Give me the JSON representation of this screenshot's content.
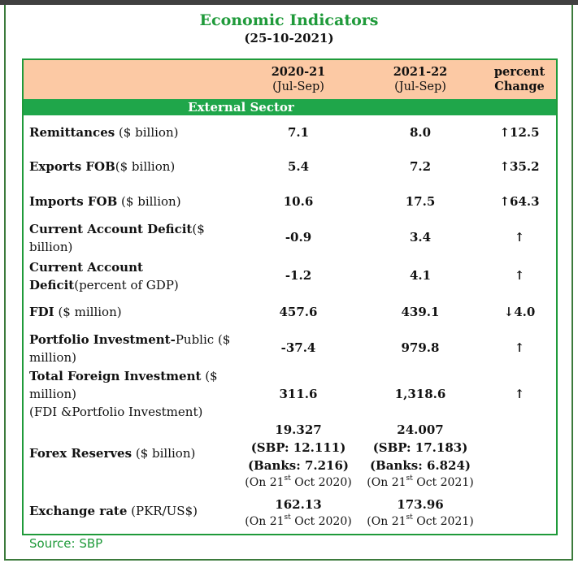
{
  "title": "Economic Indicators",
  "date": "(25-10-2021)",
  "columns": {
    "col1_year": "2020-21",
    "col1_period": "(Jul-Sep)",
    "col2_year": "2021-22",
    "col2_period": "(Jul-Sep)",
    "col3_line1": "percent",
    "col3_line2": "Change"
  },
  "section": "External Sector",
  "rows": {
    "remittances": {
      "label": "Remittances",
      "unit": " ($ billion)",
      "v1": "7.1",
      "v2": "8.0",
      "chg": "↑12.5"
    },
    "exports": {
      "label": "Exports FOB",
      "unit": "($ billion)",
      "v1": "5.4",
      "v2": "7.2",
      "chg": "↑35.2"
    },
    "imports": {
      "label": "Imports FOB",
      "unit": " ($ billion)",
      "v1": "10.6",
      "v2": "17.5",
      "chg": "↑64.3"
    },
    "cad": {
      "label": "Current Account Deficit",
      "unit": "($",
      "unit2": "billion)",
      "v1": "-0.9",
      "v2": "3.4",
      "chg": "↑"
    },
    "cad_gdp": {
      "label": "Current Account",
      "label2": "Deficit",
      "unit": "(percent of GDP)",
      "v1": "-1.2",
      "v2": "4.1",
      "chg": "↑"
    },
    "fdi": {
      "label": "FDI",
      "unit": " ($ million)",
      "v1": "457.6",
      "v2": "439.1",
      "chg": "↓4.0"
    },
    "portfolio": {
      "label": "Portfolio Investment-",
      "unit": "Public ($",
      "unit2": "million)",
      "v1": "-37.4",
      "v2": "979.8",
      "chg": "↑"
    },
    "tfi": {
      "label": "Total Foreign Investment",
      "unit": " ($",
      "unit2": "million)",
      "unit3": "(FDI &Portfolio Investment)",
      "v1": "311.6",
      "v2": "1,318.6",
      "chg": "↑"
    },
    "forex": {
      "label": "Forex Reserves",
      "unit": " ($ billion)",
      "v1": "19.327",
      "v1b": "(SBP: 12.111)",
      "v1c": "(Banks: 7.216)",
      "v1d_pre": "(On 21",
      "v1d_sup": "st",
      "v1d_post": " Oct 2020)",
      "v2": "24.007",
      "v2b": "(SBP: 17.183)",
      "v2c": "(Banks: 6.824)",
      "v2d_pre": "(On 21",
      "v2d_sup": "st",
      "v2d_post": " Oct 2021)"
    },
    "exrate": {
      "label": "Exchange rate",
      "unit": " (PKR/US$)",
      "v1": "162.13",
      "v1d_pre": "(On 21",
      "v1d_sup": "st",
      "v1d_post": " Oct 2020)",
      "v2": "173.96",
      "v2d_pre": "(On 21",
      "v2d_sup": "st",
      "v2d_post": " Oct 2021)"
    }
  },
  "source": "Source: SBP",
  "colors": {
    "title": "#1f9a3a",
    "header_bg": "#fcc9a4",
    "section_bg": "#1fa64a"
  }
}
